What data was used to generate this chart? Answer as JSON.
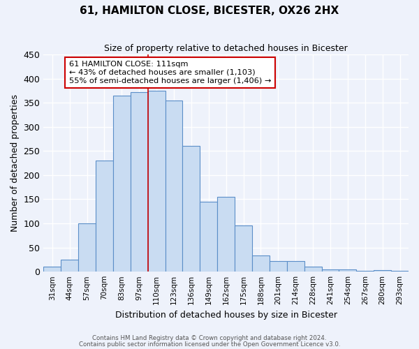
{
  "title": "61, HAMILTON CLOSE, BICESTER, OX26 2HX",
  "subtitle": "Size of property relative to detached houses in Bicester",
  "xlabel": "Distribution of detached houses by size in Bicester",
  "ylabel": "Number of detached properties",
  "bar_labels": [
    "31sqm",
    "44sqm",
    "57sqm",
    "70sqm",
    "83sqm",
    "97sqm",
    "110sqm",
    "123sqm",
    "136sqm",
    "149sqm",
    "162sqm",
    "175sqm",
    "188sqm",
    "201sqm",
    "214sqm",
    "228sqm",
    "241sqm",
    "254sqm",
    "267sqm",
    "280sqm",
    "293sqm"
  ],
  "bar_heights": [
    10,
    25,
    100,
    230,
    365,
    372,
    375,
    355,
    260,
    145,
    155,
    95,
    34,
    22,
    22,
    10,
    5,
    4,
    1,
    3,
    2
  ],
  "bar_color": "#c9dcf2",
  "bar_edge_color": "#5b8ec8",
  "ylim": [
    0,
    450
  ],
  "yticks": [
    0,
    50,
    100,
    150,
    200,
    250,
    300,
    350,
    400,
    450
  ],
  "vline_bar_index": 6,
  "annotation_title": "61 HAMILTON CLOSE: 111sqm",
  "annotation_line1": "← 43% of detached houses are smaller (1,103)",
  "annotation_line2": "55% of semi-detached houses are larger (1,406) →",
  "footer_line1": "Contains HM Land Registry data © Crown copyright and database right 2024.",
  "footer_line2": "Contains public sector information licensed under the Open Government Licence v3.0.",
  "background_color": "#eef2fb",
  "grid_color": "#ffffff"
}
